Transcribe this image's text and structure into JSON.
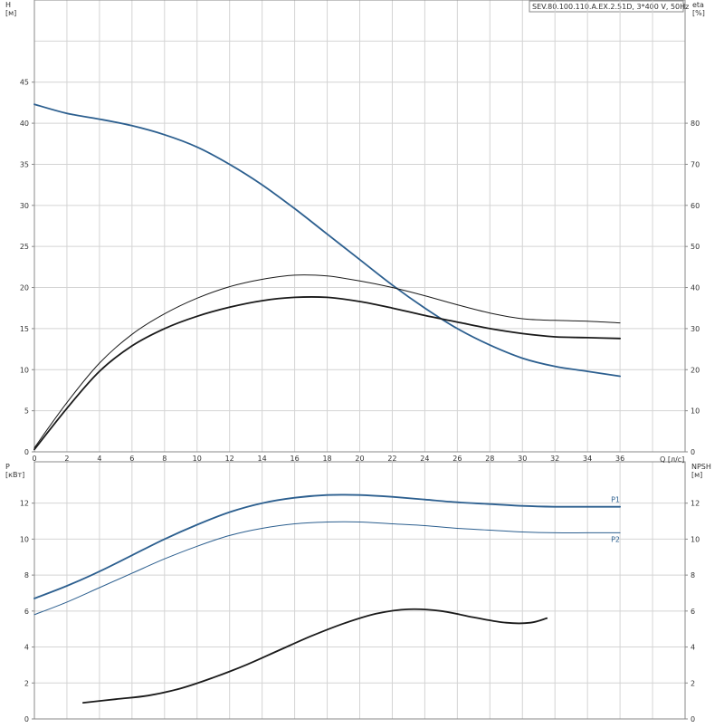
{
  "title": "SEV.80.100.110.A.EX.2.51D, 3*400 V, 50Hz",
  "colors": {
    "blue": "#2c5f8f",
    "black": "#1a1a1a",
    "grid": "#d4d4d4",
    "frame": "#8a8a8a"
  },
  "chart_data": [
    {
      "type": "line",
      "name": "head-efficiency",
      "xlabel": "Q [л/с]",
      "ylabel": "H\n[м]",
      "ylabel_right": "eta\n[%]",
      "xlim": [
        0,
        40
      ],
      "ylim": [
        0,
        55
      ],
      "ylim_right": [
        0,
        110
      ],
      "x_ticks": [
        0,
        2,
        4,
        6,
        8,
        10,
        12,
        14,
        16,
        18,
        20,
        22,
        24,
        26,
        28,
        30,
        32,
        34,
        36
      ],
      "y_ticks": [
        0,
        5,
        10,
        15,
        20,
        25,
        30,
        35,
        40,
        45
      ],
      "y_ticks_right": [
        0,
        10,
        20,
        30,
        40,
        50,
        60,
        70,
        80
      ],
      "grid": true,
      "series": [
        {
          "axis": "left",
          "color": "#2c5f8f",
          "width": 1.8,
          "x": [
            0,
            2,
            4,
            6,
            8,
            10,
            12,
            14,
            16,
            18,
            20,
            22,
            24,
            26,
            28,
            30,
            32,
            34,
            36
          ],
          "y": [
            42.3,
            41.2,
            40.5,
            39.7,
            38.6,
            37.1,
            35.0,
            32.5,
            29.6,
            26.5,
            23.4,
            20.3,
            17.5,
            15.0,
            13.0,
            11.4,
            10.4,
            9.8,
            9.2
          ]
        },
        {
          "axis": "right",
          "color": "#1a1a1a",
          "width": 1,
          "x": [
            0,
            2,
            4,
            6,
            8,
            10,
            12,
            14,
            16,
            18,
            20,
            22,
            24,
            26,
            28,
            30,
            32,
            34,
            36
          ],
          "y": [
            1.0,
            12.0,
            21.6,
            28.6,
            33.6,
            37.4,
            40.2,
            42.0,
            43.0,
            42.8,
            41.6,
            40.0,
            38.0,
            35.8,
            33.8,
            32.4,
            32.0,
            31.8,
            31.4
          ]
        },
        {
          "axis": "right",
          "color": "#1a1a1a",
          "width": 1.8,
          "x": [
            0,
            2,
            4,
            6,
            8,
            10,
            12,
            14,
            16,
            18,
            20,
            22,
            24,
            26,
            28,
            30,
            32,
            34,
            36
          ],
          "y": [
            0.6,
            10.6,
            19.6,
            25.8,
            30.0,
            33.0,
            35.2,
            36.8,
            37.6,
            37.6,
            36.6,
            35.0,
            33.2,
            31.6,
            30.0,
            28.8,
            28.0,
            27.8,
            27.6
          ]
        }
      ]
    },
    {
      "type": "line",
      "name": "power-npsh",
      "ylabel": "P\n[кВт]",
      "ylabel_right": "NPSH\n[м]",
      "xlim": [
        0,
        40
      ],
      "ylim": [
        0,
        14.3
      ],
      "ylim_right": [
        0,
        14.3
      ],
      "y_ticks": [
        0,
        2,
        4,
        6,
        8,
        10,
        12
      ],
      "y_ticks_right": [
        0,
        2,
        4,
        6,
        8,
        10,
        12
      ],
      "grid": true,
      "series": [
        {
          "name": "P1",
          "axis": "left",
          "color": "#2c5f8f",
          "width": 1.8,
          "x": [
            0,
            2,
            4,
            6,
            8,
            10,
            12,
            14,
            16,
            18,
            20,
            22,
            24,
            26,
            28,
            30,
            32,
            34,
            36
          ],
          "y": [
            6.7,
            7.4,
            8.2,
            9.1,
            10.0,
            10.8,
            11.5,
            12.0,
            12.3,
            12.45,
            12.45,
            12.35,
            12.2,
            12.05,
            11.95,
            11.85,
            11.8,
            11.8,
            11.8
          ]
        },
        {
          "name": "P2",
          "axis": "left",
          "color": "#2c5f8f",
          "width": 1,
          "x": [
            0,
            2,
            4,
            6,
            8,
            10,
            12,
            14,
            16,
            18,
            20,
            22,
            24,
            26,
            28,
            30,
            32,
            34,
            36
          ],
          "y": [
            5.8,
            6.5,
            7.3,
            8.1,
            8.9,
            9.6,
            10.2,
            10.6,
            10.85,
            10.95,
            10.95,
            10.85,
            10.75,
            10.6,
            10.5,
            10.4,
            10.35,
            10.35,
            10.35
          ]
        },
        {
          "axis": "right",
          "color": "#1a1a1a",
          "width": 1.8,
          "x": [
            3,
            5,
            7,
            9,
            11,
            13,
            15,
            17,
            19,
            21,
            23,
            25,
            27,
            29,
            30.5,
            31.5
          ],
          "y": [
            0.9,
            1.1,
            1.3,
            1.7,
            2.3,
            3.0,
            3.8,
            4.6,
            5.3,
            5.85,
            6.1,
            6.0,
            5.65,
            5.35,
            5.35,
            5.6
          ]
        }
      ]
    }
  ]
}
